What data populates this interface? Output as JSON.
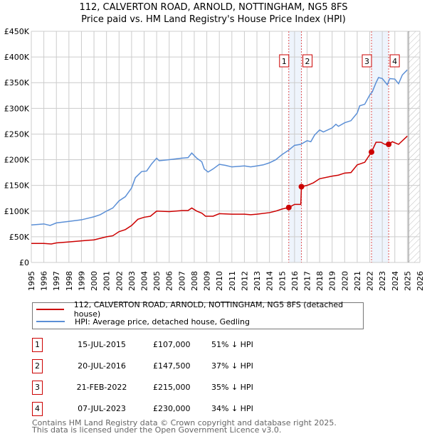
{
  "title_line1": "112, CALVERTON ROAD, ARNOLD, NOTTINGHAM, NG5 8FS",
  "title_line2": "Price paid vs. HM Land Registry's House Price Index (HPI)",
  "chart_data": {
    "type": "line",
    "xlim": [
      1995,
      2026
    ],
    "ylim": [
      0,
      450000
    ],
    "yticks": [
      0,
      50000,
      100000,
      150000,
      200000,
      250000,
      300000,
      350000,
      400000,
      450000
    ],
    "ytick_labels": [
      "£0",
      "£50K",
      "£100K",
      "£150K",
      "£200K",
      "£250K",
      "£300K",
      "£350K",
      "£400K",
      "£450K"
    ],
    "xticks": [
      1995,
      1996,
      1997,
      1998,
      1999,
      2000,
      2001,
      2002,
      2003,
      2004,
      2005,
      2006,
      2007,
      2008,
      2009,
      2010,
      2011,
      2012,
      2013,
      2014,
      2015,
      2016,
      2017,
      2018,
      2019,
      2020,
      2021,
      2022,
      2023,
      2024,
      2025,
      2026
    ],
    "grid": true,
    "projection_start": 2025.1,
    "shaded_ranges": [
      [
        2015.54,
        2016.55
      ],
      [
        2022.14,
        2023.51
      ]
    ],
    "series": [
      {
        "name": "112, CALVERTON ROAD, ARNOLD, NOTTINGHAM, NG5 8FS (detached house)",
        "color": "#cc0000",
        "x": [
          1995,
          1996,
          1996.6,
          1997,
          1998,
          1999,
          2000,
          2001,
          2001.5,
          2002,
          2002.5,
          2003,
          2003.5,
          2004,
          2004.5,
          2005,
          2006,
          2007,
          2007.5,
          2007.8,
          2008.2,
          2008.6,
          2008.9,
          2009.5,
          2010,
          2011,
          2012,
          2012.5,
          2013,
          2014,
          2014.5,
          2015,
          2015.54,
          2016,
          2016.5,
          2016.55,
          2017,
          2017.5,
          2018,
          2019,
          2019.5,
          2020,
          2020.5,
          2021,
          2021.6,
          2022.14,
          2022.5,
          2022.9,
          2023.2,
          2023.51,
          2023.8,
          2024.3,
          2025
        ],
        "y": [
          37000,
          37000,
          36000,
          38000,
          40000,
          42000,
          44000,
          50000,
          52000,
          60000,
          64000,
          72000,
          84000,
          88000,
          90000,
          100000,
          99000,
          101000,
          101000,
          106000,
          100000,
          96000,
          90000,
          90000,
          95000,
          94000,
          94000,
          93000,
          94000,
          97000,
          100000,
          104000,
          107000,
          113000,
          113000,
          147500,
          150000,
          155000,
          163000,
          168000,
          170000,
          174000,
          175000,
          190000,
          195000,
          215000,
          234000,
          234000,
          230000,
          230000,
          235000,
          230000,
          246000
        ]
      },
      {
        "name": "HPI: Average price, detached house, Gedling",
        "color": "#5b8fd6",
        "x": [
          1995,
          1996,
          1996.5,
          1997,
          1998,
          1999,
          2000,
          2000.5,
          2001,
          2001.5,
          2002,
          2002.5,
          2003,
          2003.3,
          2003.8,
          2004.2,
          2004.6,
          2005,
          2005.2,
          2006,
          2007,
          2007.5,
          2007.8,
          2008.2,
          2008.6,
          2008.8,
          2009.1,
          2009.5,
          2010,
          2010.5,
          2011,
          2012,
          2012.5,
          2013,
          2013.5,
          2014,
          2014.5,
          2015,
          2015.5,
          2016,
          2016.5,
          2017,
          2017.3,
          2017.6,
          2018,
          2018.3,
          2019,
          2019.3,
          2019.5,
          2020,
          2020.5,
          2021,
          2021.2,
          2021.6,
          2022,
          2022.2,
          2022.5,
          2022.7,
          2023,
          2023.4,
          2023.6,
          2024,
          2024.3,
          2024.6,
          2025
        ],
        "y": [
          73000,
          75000,
          72000,
          77000,
          80000,
          83000,
          89000,
          93000,
          100000,
          106000,
          120000,
          128000,
          145000,
          165000,
          177000,
          178000,
          192000,
          203000,
          198000,
          200000,
          203000,
          204000,
          213000,
          203000,
          196000,
          182000,
          176000,
          182000,
          191000,
          189000,
          186000,
          188000,
          186000,
          188000,
          190000,
          194000,
          200000,
          210000,
          218000,
          228000,
          230000,
          237000,
          235000,
          248000,
          258000,
          254000,
          262000,
          269000,
          265000,
          272000,
          276000,
          291000,
          305000,
          308000,
          326000,
          332000,
          350000,
          360000,
          358000,
          346000,
          358000,
          357000,
          348000,
          365000,
          375000
        ]
      }
    ],
    "sales": [
      {
        "label": "1",
        "x": 2015.54,
        "y": 107000
      },
      {
        "label": "2",
        "x": 2016.55,
        "y": 147500
      },
      {
        "label": "3",
        "x": 2022.14,
        "y": 215000
      },
      {
        "label": "4",
        "x": 2023.51,
        "y": 230000
      }
    ]
  },
  "legend": {
    "property": "112, CALVERTON ROAD, ARNOLD, NOTTINGHAM, NG5 8FS (detached house)",
    "hpi": "HPI: Average price, detached house, Gedling"
  },
  "transactions": [
    {
      "num": "1",
      "date": "15-JUL-2015",
      "price": "£107,000",
      "hpi": "51% ↓ HPI"
    },
    {
      "num": "2",
      "date": "20-JUL-2016",
      "price": "£147,500",
      "hpi": "37% ↓ HPI"
    },
    {
      "num": "3",
      "date": "21-FEB-2022",
      "price": "£215,000",
      "hpi": "35% ↓ HPI"
    },
    {
      "num": "4",
      "date": "07-JUL-2023",
      "price": "£230,000",
      "hpi": "34% ↓ HPI"
    }
  ],
  "footer": {
    "line1": "Contains HM Land Registry data © Crown copyright and database right 2025.",
    "line2": "This data is licensed under the Open Government Licence v3.0."
  }
}
